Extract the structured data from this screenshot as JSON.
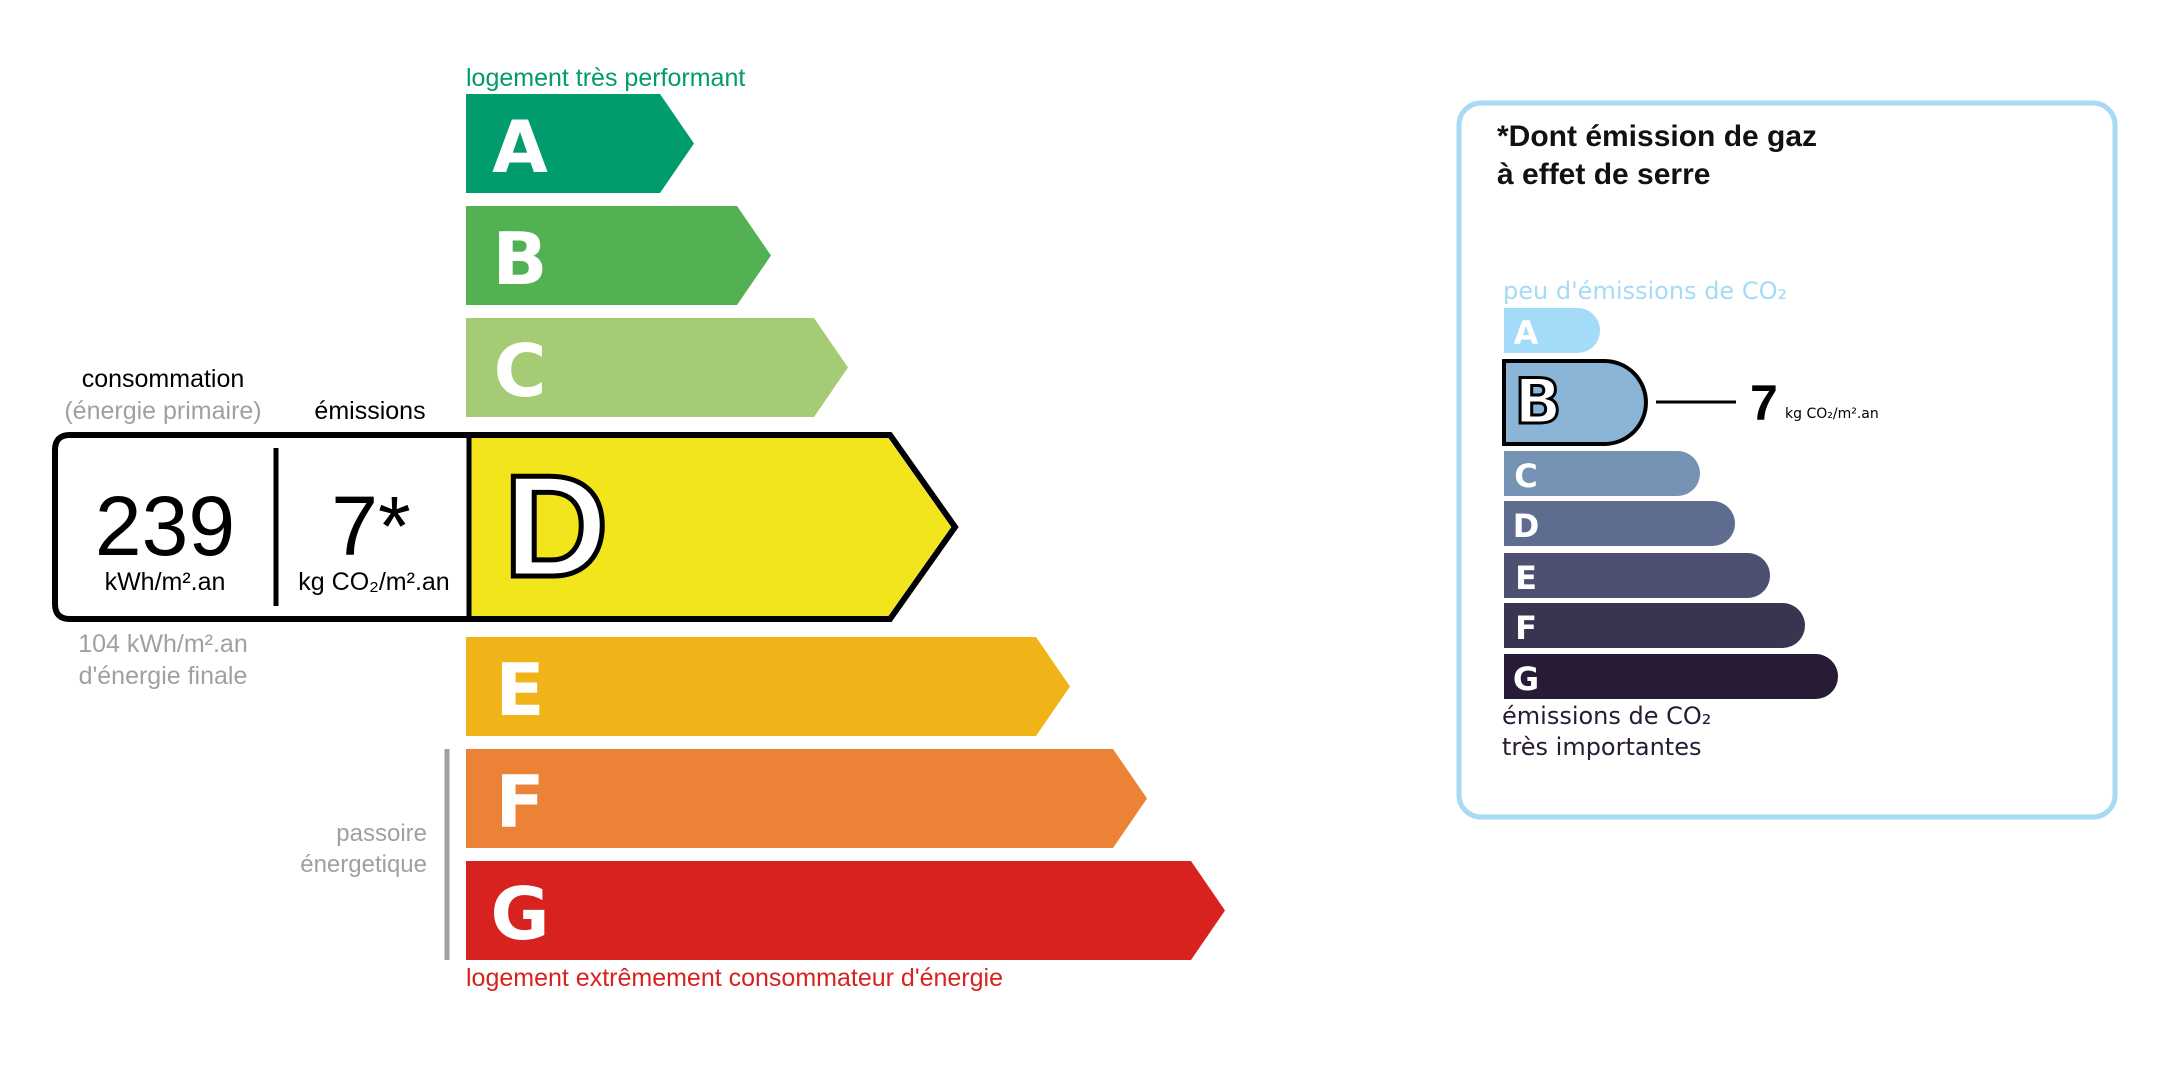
{
  "energy": {
    "top_label": "logement très performant",
    "bottom_label": "logement extrêmement consommateur d'énergie",
    "passoire_label": [
      "passoire",
      "énergetique"
    ],
    "classes": [
      {
        "letter": "A",
        "color": "#009c6d"
      },
      {
        "letter": "B",
        "color": "#52b153"
      },
      {
        "letter": "C",
        "color": "#a5cc74"
      },
      {
        "letter": "D",
        "color": "#f2e51c"
      },
      {
        "letter": "E",
        "color": "#f0b418"
      },
      {
        "letter": "F",
        "color": "#eb8235"
      },
      {
        "letter": "G",
        "color": "#d7221f"
      }
    ],
    "current_class": "D",
    "consumption_label": "consommation",
    "consumption_sublabel": "(énergie primaire)",
    "emissions_label": "émissions",
    "consumption_value": "239",
    "consumption_unit": "kWh/m².an",
    "emissions_value": "7*",
    "emissions_unit": "kg CO₂/m².an",
    "final_energy": "104 kWh/m².an",
    "final_energy_label": "d'énergie finale"
  },
  "ges": {
    "title_line1": "*Dont émission de gaz",
    "title_line2": "à effet de serre",
    "top_label": "peu d'émissions de CO₂",
    "bottom_label_line1": "émissions de CO₂",
    "bottom_label_line2": "très importantes",
    "classes": [
      {
        "letter": "A",
        "color": "#a4dbf8"
      },
      {
        "letter": "B",
        "color": "#8bb5d6"
      },
      {
        "letter": "C",
        "color": "#7693b5"
      },
      {
        "letter": "D",
        "color": "#5e6d8f"
      },
      {
        "letter": "E",
        "color": "#4d5070"
      },
      {
        "letter": "F",
        "color": "#393551"
      },
      {
        "letter": "G",
        "color": "#281b35"
      }
    ],
    "current_class": "B",
    "value": "7",
    "unit": "kg CO₂/m².an",
    "border_color": "#a6daf5"
  }
}
